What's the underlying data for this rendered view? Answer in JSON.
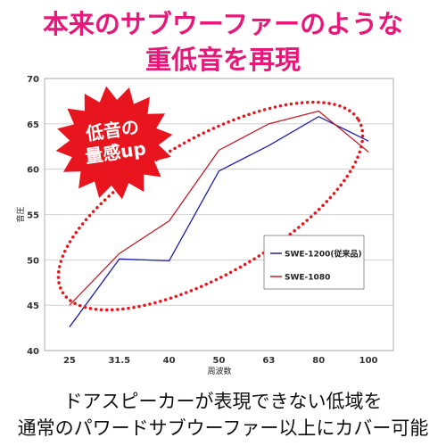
{
  "headline": {
    "line1": "本来のサブウーファーのような",
    "line2": "重低音を再現"
  },
  "badge": {
    "line1": "低音の",
    "line2": "量感up",
    "color": "#e8141e"
  },
  "footer": {
    "line1": "ドアスピーカーが表現できない低域を",
    "line2": "通常のパワードサブウーファー以上にカバー可能"
  },
  "chart_data": {
    "type": "line",
    "categories": [
      "25",
      "31.5",
      "40",
      "50",
      "63",
      "80",
      "100"
    ],
    "ylabel": "音圧",
    "xlabel": "周波数",
    "ylim": [
      40,
      70
    ],
    "yticks": [
      40,
      45,
      50,
      55,
      60,
      65,
      70
    ],
    "grid": true,
    "legend_position": "right",
    "series": [
      {
        "name": "SWE-1200(従来品)",
        "color": "#1f1fa8",
        "values": [
          42.6,
          50.1,
          49.9,
          59.8,
          62.6,
          65.8,
          63.1
        ]
      },
      {
        "name": "SWE-1080",
        "color": "#c0202a",
        "values": [
          45.0,
          50.7,
          54.3,
          62.1,
          65.0,
          66.4,
          61.9
        ]
      }
    ],
    "highlight_color": "#e8141e"
  }
}
